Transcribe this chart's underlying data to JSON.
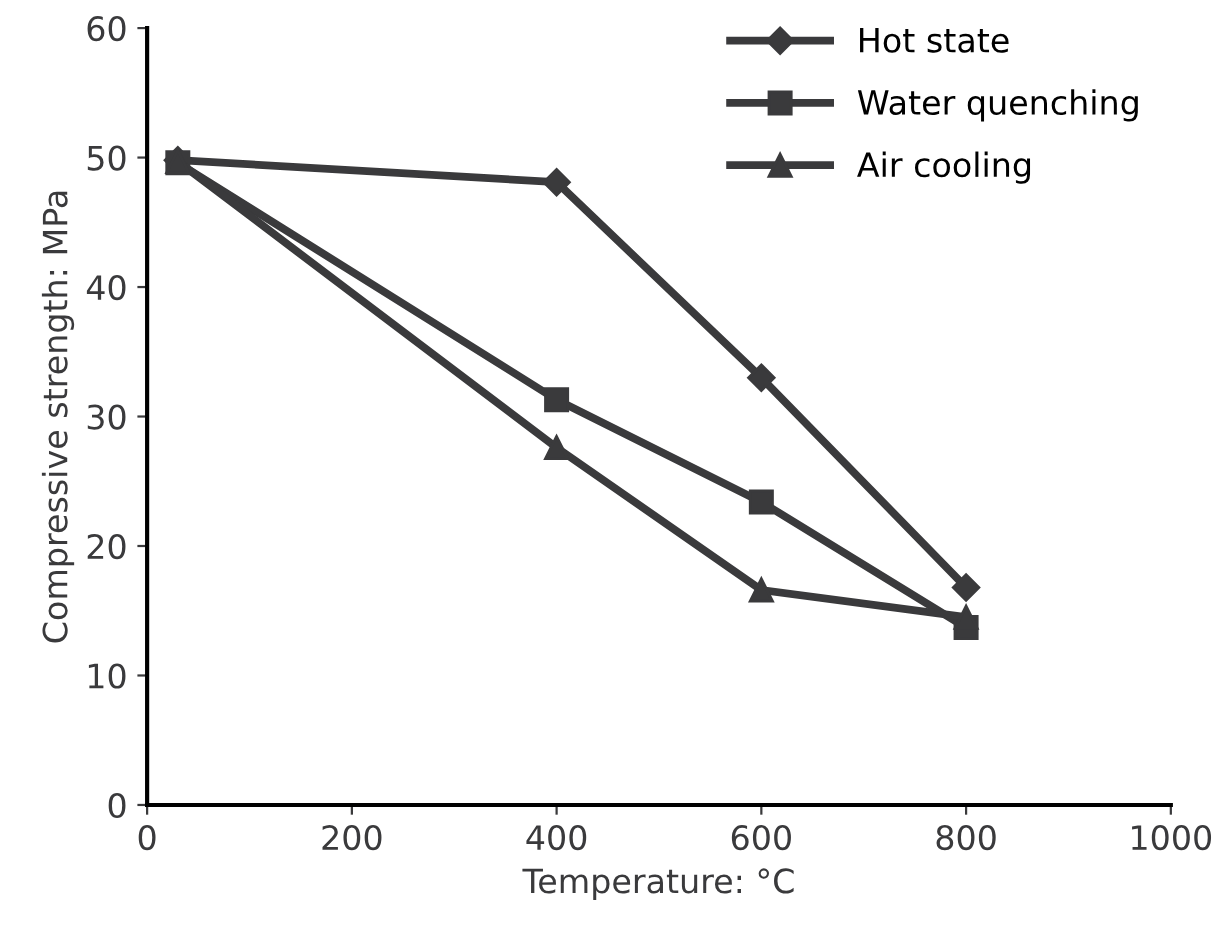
{
  "chart_data": {
    "type": "line",
    "xlabel": "Temperature: °C",
    "ylabel": "Compressive strength: MPa",
    "x": [
      30,
      400,
      600,
      800
    ],
    "series": [
      {
        "name": "Hot state",
        "color": "#3a3a3c",
        "marker": "diamond",
        "values": [
          49.8,
          48.1,
          33.0,
          16.8
        ]
      },
      {
        "name": "Water quenching",
        "color": "#3a3a3c",
        "marker": "square",
        "values": [
          49.6,
          31.3,
          23.4,
          13.7
        ]
      },
      {
        "name": "Air cooling",
        "color": "#3a3a3c",
        "marker": "triangle",
        "values": [
          49.7,
          27.6,
          16.6,
          14.5
        ]
      }
    ],
    "xlim": [
      0,
      1000
    ],
    "xticks": [
      0,
      200,
      400,
      600,
      800,
      1000
    ],
    "ylim": [
      0,
      60
    ],
    "yticks": [
      0,
      10,
      20,
      30,
      40,
      50,
      60
    ],
    "grid": false,
    "legend": "top right",
    "line_style": "solid"
  }
}
